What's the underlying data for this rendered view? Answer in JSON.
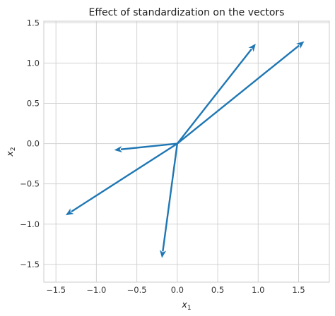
{
  "chart_data": {
    "type": "quiver",
    "title": "Effect of standardization on the vectors",
    "xlabel": {
      "base": "x",
      "sub": "1"
    },
    "ylabel": {
      "base": "x",
      "sub": "2"
    },
    "xlim": [
      -1.65,
      1.88
    ],
    "ylim": [
      -1.72,
      1.52
    ],
    "xticks": [
      -1.5,
      -1.0,
      -0.5,
      0.0,
      0.5,
      1.0,
      1.5
    ],
    "xtick_labels": [
      "−1.5",
      "−1.0",
      "−0.5",
      "0.0",
      "0.5",
      "1.0",
      "1.5"
    ],
    "yticks": [
      -1.5,
      -1.0,
      -0.5,
      0.0,
      0.5,
      1.0,
      1.5
    ],
    "ytick_labels": [
      "−1.5",
      "−1.0",
      "−0.5",
      "0.0",
      "0.5",
      "1.0",
      "1.5"
    ],
    "grid": true,
    "color": "#1f77b4",
    "origin": [
      0,
      0
    ],
    "vectors": [
      {
        "x": 0.97,
        "y": 1.24
      },
      {
        "x": 1.57,
        "y": 1.27
      },
      {
        "x": -0.78,
        "y": -0.08
      },
      {
        "x": -1.38,
        "y": -0.89
      },
      {
        "x": -0.19,
        "y": -1.42
      }
    ]
  }
}
